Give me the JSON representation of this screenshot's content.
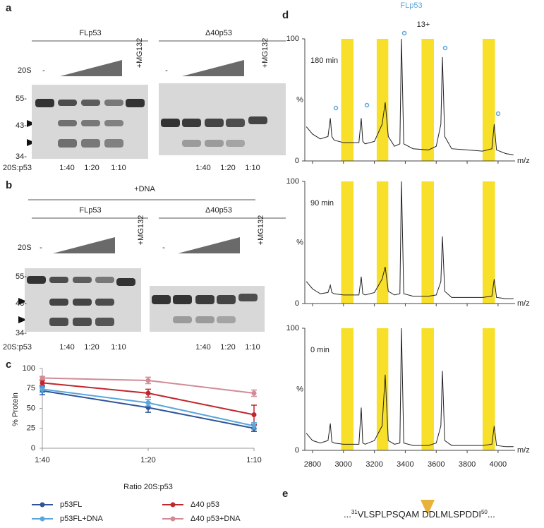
{
  "figure": {
    "a": {
      "label": "a",
      "groups": [
        "FLp53",
        "Δ40p53"
      ],
      "enzyme": "20S",
      "blank": "-",
      "inhibitor": "+MG132",
      "markers": [
        "55-",
        "43-",
        "34-"
      ],
      "ratio_label": "20S:p53",
      "ratios": [
        "1:40",
        "1:20",
        "1:10"
      ]
    },
    "b": {
      "label": "b",
      "condition": "+DNA",
      "groups": [
        "FLp53",
        "Δ40p53"
      ],
      "enzyme": "20S",
      "blank": "-",
      "inhibitor": "+MG132",
      "markers": [
        "55-",
        "43-",
        "34-"
      ],
      "ratio_label": "20S:p53",
      "ratios": [
        "1:40",
        "1:20",
        "1:10"
      ]
    },
    "c": {
      "label": "c"
    },
    "d": {
      "label": "d"
    },
    "e": {
      "label": "e",
      "prefix": "...",
      "start": "31",
      "left": "VLSPLPSQAM",
      "right": "DDLMLSPDDI",
      "end": "50",
      "suffix": "..."
    }
  },
  "chart_data": [
    {
      "type": "line",
      "ylabel": "% Protein",
      "xlabel": "Ratio  20S:p53",
      "categories": [
        "1:40",
        "1:20",
        "1:10"
      ],
      "ylim": [
        0,
        100
      ],
      "yticks": [
        0,
        25,
        50,
        75,
        100
      ],
      "series": [
        {
          "name": "p53FL",
          "color": "#2e5597",
          "values": [
            72,
            51,
            25
          ],
          "errors": [
            5,
            6,
            4
          ]
        },
        {
          "name": "Δ40 p53",
          "color": "#c0272d",
          "values": [
            82,
            69,
            42
          ],
          "errors": [
            3,
            5,
            12
          ]
        },
        {
          "name": "p53FL+DNA",
          "color": "#5aa6dc",
          "values": [
            74,
            57,
            28
          ],
          "errors": [
            4,
            4,
            4
          ]
        },
        {
          "name": "Δ40 p53+DNA",
          "color": "#d18b97",
          "values": [
            88,
            85,
            69
          ],
          "errors": [
            2,
            4,
            4
          ]
        }
      ]
    },
    {
      "type": "spectrum",
      "title": "FLp53",
      "annotation": "13+",
      "xlabel": "m/z",
      "ylabel": "%",
      "xlim": [
        2750,
        4110
      ],
      "xticks": [
        2800,
        3000,
        3200,
        3400,
        3600,
        3800,
        4000
      ],
      "ylim": [
        0,
        100
      ],
      "yticks": [
        0,
        100
      ],
      "highlights": [
        [
          2985,
          3065
        ],
        [
          3215,
          3290
        ],
        [
          3505,
          3585
        ],
        [
          3900,
          3980
        ]
      ],
      "highlight_color": "#f7df2a",
      "x": [
        2760,
        2800,
        2850,
        2900,
        2915,
        2925,
        2940,
        3000,
        3100,
        3115,
        3125,
        3140,
        3200,
        3250,
        3270,
        3290,
        3330,
        3365,
        3375,
        3390,
        3450,
        3550,
        3600,
        3630,
        3640,
        3655,
        3700,
        3800,
        3900,
        3960,
        3975,
        3990,
        4050,
        4100
      ],
      "series": [
        {
          "name": "180 min",
          "color": "#222222",
          "values": [
            28,
            22,
            18,
            20,
            35,
            20,
            17,
            15,
            15,
            35,
            16,
            14,
            16,
            30,
            48,
            20,
            12,
            14,
            100,
            14,
            10,
            9,
            12,
            30,
            85,
            20,
            10,
            9,
            8,
            10,
            30,
            9,
            6,
            5
          ]
        },
        {
          "name": "90 min",
          "color": "#222222",
          "values": [
            18,
            12,
            8,
            9,
            15,
            9,
            8,
            7,
            7,
            22,
            8,
            7,
            9,
            20,
            30,
            10,
            7,
            8,
            100,
            8,
            6,
            6,
            7,
            18,
            55,
            10,
            5,
            5,
            5,
            6,
            20,
            5,
            4,
            4
          ]
        },
        {
          "name": "0 min",
          "color": "#222222",
          "values": [
            14,
            8,
            6,
            8,
            22,
            7,
            6,
            5,
            5,
            35,
            6,
            5,
            8,
            20,
            62,
            8,
            5,
            6,
            100,
            6,
            4,
            4,
            6,
            20,
            65,
            8,
            4,
            4,
            4,
            5,
            20,
            4,
            3,
            3
          ]
        }
      ]
    }
  ]
}
